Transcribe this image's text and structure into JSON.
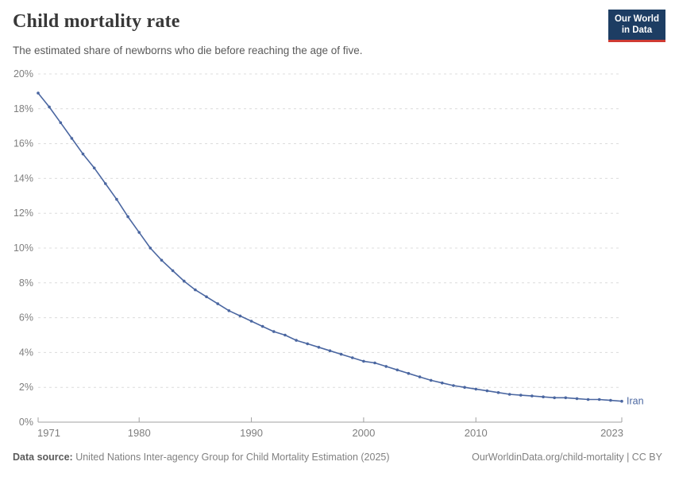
{
  "header": {
    "title": "Child mortality rate",
    "subtitle": "The estimated share of newborns who die before reaching the age of five.",
    "logo_line1": "Our World",
    "logo_line2": "in Data"
  },
  "footer": {
    "datasource_label": "Data source:",
    "datasource_text": " United Nations Inter-agency Group for Child Mortality Estimation (2025)",
    "link_text": "OurWorldinData.org/child-mortality | CC BY"
  },
  "colors": {
    "series_blue": "#4b67a1",
    "gridline": "#dcdcdc",
    "axis": "#a0a0a0",
    "tick_label": "#7e7e7e",
    "logo_navy": "#1d3d63",
    "logo_red": "#cf3a32"
  },
  "chart_data": {
    "type": "line",
    "title": "Child mortality rate",
    "xlabel": "",
    "ylabel": "",
    "xlim": [
      1971,
      2023
    ],
    "ylim": [
      0,
      20
    ],
    "y_tick_step": 2,
    "y_tick_suffix": "%",
    "grid": "horizontal-dashed",
    "legend_position": "end-of-line-label",
    "x_ticks": [
      1971,
      1980,
      1990,
      2000,
      2010,
      2023
    ],
    "series": [
      {
        "name": "Iran",
        "color": "#4b67a1",
        "x": [
          1971,
          1972,
          1973,
          1974,
          1975,
          1976,
          1977,
          1978,
          1979,
          1980,
          1981,
          1982,
          1983,
          1984,
          1985,
          1986,
          1987,
          1988,
          1989,
          1990,
          1991,
          1992,
          1993,
          1994,
          1995,
          1996,
          1997,
          1998,
          1999,
          2000,
          2001,
          2002,
          2003,
          2004,
          2005,
          2006,
          2007,
          2008,
          2009,
          2010,
          2011,
          2012,
          2013,
          2014,
          2015,
          2016,
          2017,
          2018,
          2019,
          2020,
          2021,
          2022,
          2023
        ],
        "values": [
          18.9,
          18.1,
          17.2,
          16.3,
          15.4,
          14.6,
          13.7,
          12.8,
          11.8,
          10.9,
          10.0,
          9.3,
          8.7,
          8.1,
          7.6,
          7.2,
          6.8,
          6.4,
          6.1,
          5.8,
          5.5,
          5.2,
          5.0,
          4.7,
          4.5,
          4.3,
          4.1,
          3.9,
          3.7,
          3.5,
          3.4,
          3.2,
          3.0,
          2.8,
          2.6,
          2.4,
          2.25,
          2.1,
          2.0,
          1.9,
          1.8,
          1.7,
          1.6,
          1.55,
          1.5,
          1.45,
          1.4,
          1.4,
          1.35,
          1.3,
          1.3,
          1.25,
          1.2
        ]
      }
    ]
  }
}
